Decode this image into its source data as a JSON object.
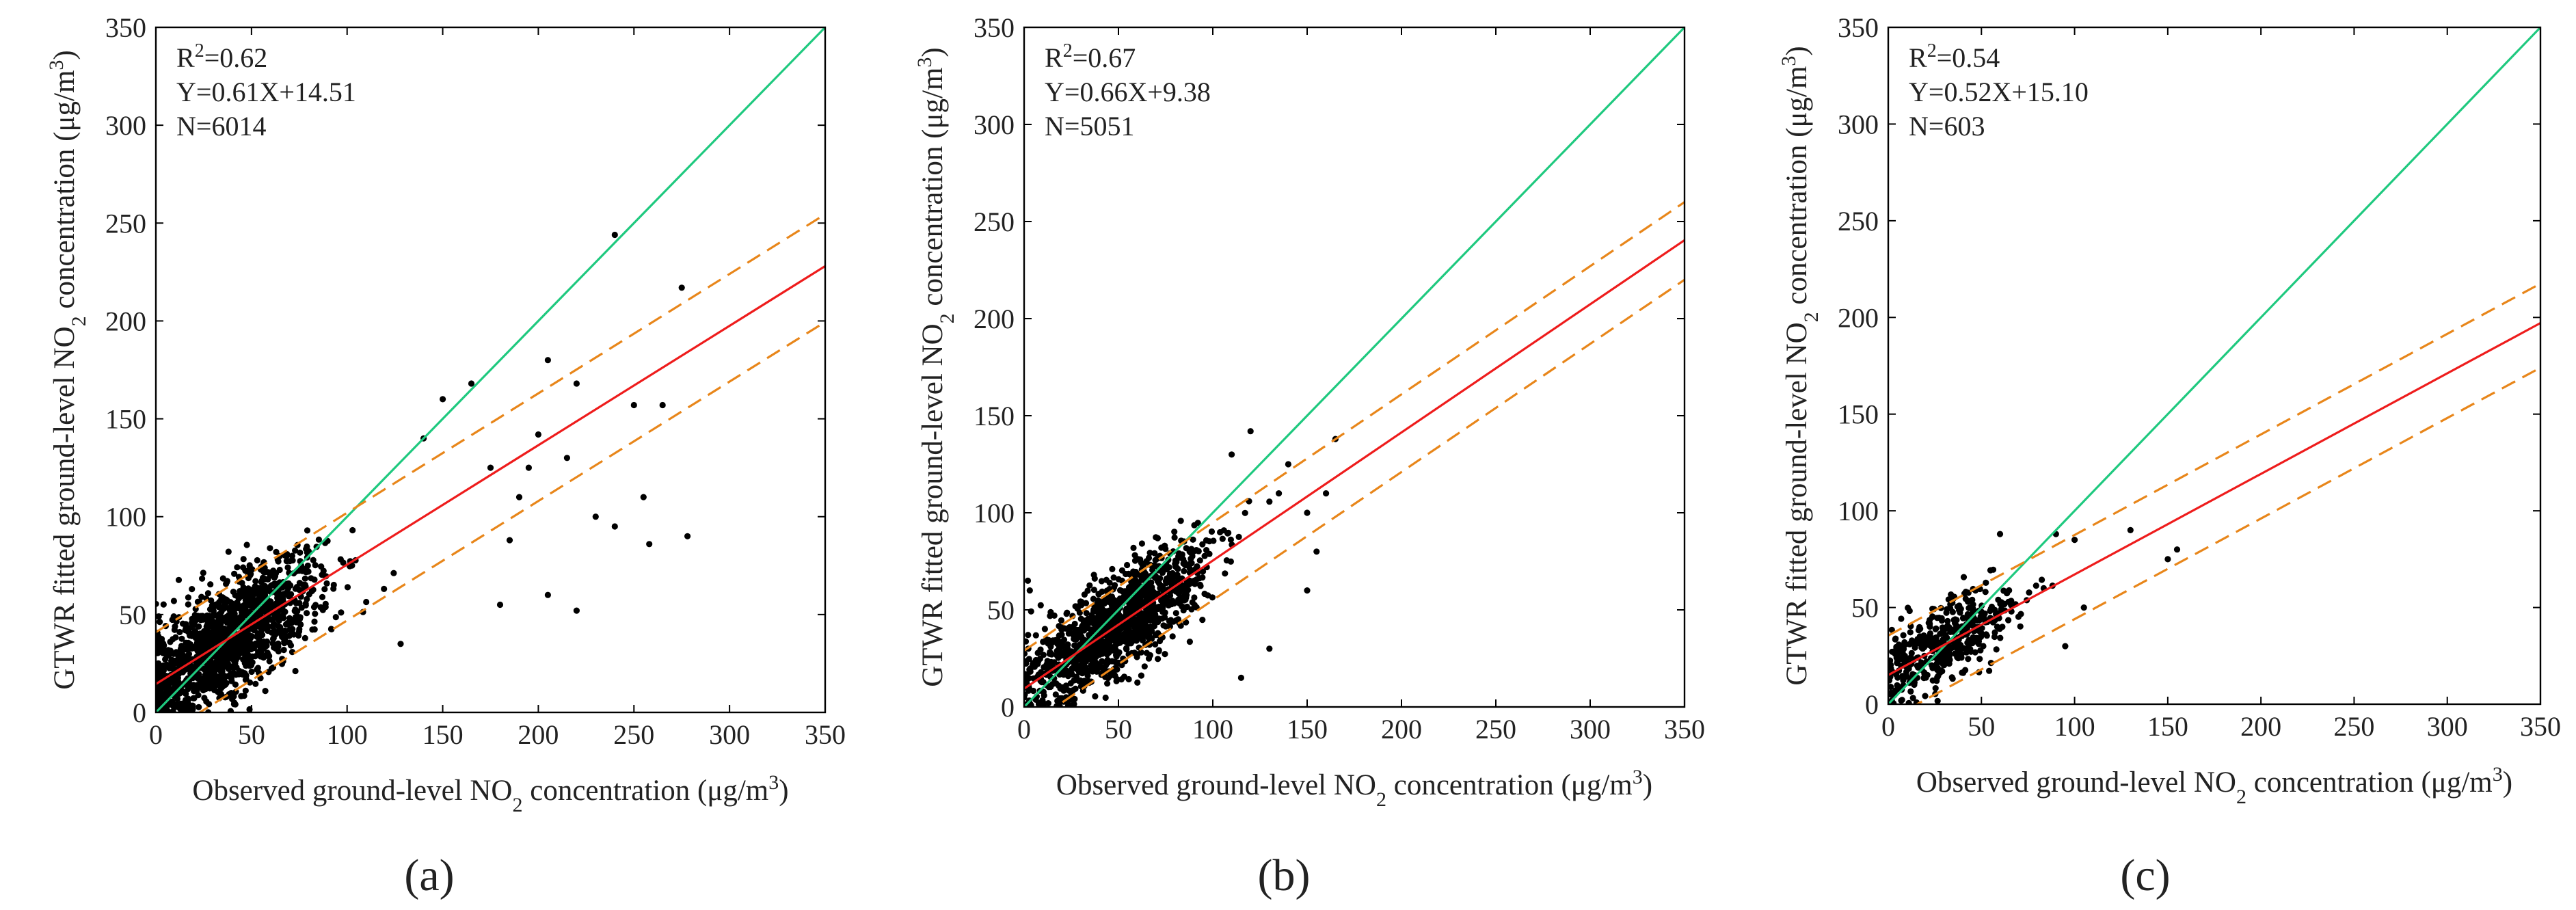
{
  "panel_labels": [
    "(a)",
    "(b)",
    "(c)"
  ],
  "chart_data": [
    {
      "type": "scatter",
      "panel": "(a)",
      "xlabel": "Observed ground-level NO2 concentration (μg/m3)",
      "ylabel": "GTWR fitted ground-level NO2 concentration (μg/m3)",
      "xlim": [
        0,
        350
      ],
      "ylim": [
        0,
        350
      ],
      "xticks": [
        0,
        50,
        100,
        150,
        200,
        250,
        300,
        350
      ],
      "yticks": [
        0,
        50,
        100,
        150,
        200,
        250,
        300,
        350
      ],
      "annotations": {
        "r2_prefix": "R",
        "r2_sup": "2",
        "r2_value": "=0.62",
        "equation": "Y=0.61X+14.51",
        "n": "N=6014"
      },
      "lines": [
        {
          "name": "1:1 line",
          "slope": 1.0,
          "intercept": 0,
          "color": "#1fc97f",
          "dash": "solid"
        },
        {
          "name": "fit",
          "slope": 0.61,
          "intercept": 14.51,
          "color": "#ee1c1c",
          "dash": "solid"
        },
        {
          "name": "upper bound",
          "slope": 0.61,
          "intercept": 41.0,
          "color": "#e8861a",
          "dash": "dashed"
        },
        {
          "name": "lower bound",
          "slope": 0.61,
          "intercept": -14.0,
          "color": "#e8861a",
          "dash": "dashed"
        }
      ],
      "cluster": {
        "count": 1400,
        "x_center": 38,
        "x_spread": 24,
        "x_max": 150,
        "slope": 0.61,
        "intercept": 14.51,
        "noise": 14
      },
      "outliers": [
        [
          240,
          244
        ],
        [
          275,
          217
        ],
        [
          265,
          157
        ],
        [
          205,
          180
        ],
        [
          200,
          142
        ],
        [
          215,
          130
        ],
        [
          220,
          168
        ],
        [
          250,
          157
        ],
        [
          255,
          110
        ],
        [
          258,
          86
        ],
        [
          278,
          90
        ],
        [
          220,
          52
        ],
        [
          230,
          100
        ],
        [
          180,
          55
        ],
        [
          205,
          60
        ],
        [
          165,
          168
        ],
        [
          175,
          125
        ],
        [
          190,
          110
        ],
        [
          140,
          140
        ],
        [
          150,
          160
        ],
        [
          128,
          35
        ],
        [
          185,
          88
        ],
        [
          240,
          95
        ],
        [
          195,
          125
        ]
      ]
    },
    {
      "type": "scatter",
      "panel": "(b)",
      "xlabel": "Observed ground-level NO2 concentration (μg/m3)",
      "ylabel": "GTWR fitted ground-level NO2 concentration (μg/m3)",
      "xlim": [
        0,
        350
      ],
      "ylim": [
        0,
        350
      ],
      "xticks": [
        0,
        50,
        100,
        150,
        200,
        250,
        300,
        350
      ],
      "yticks": [
        0,
        50,
        100,
        150,
        200,
        250,
        300,
        350
      ],
      "annotations": {
        "r2_prefix": "R",
        "r2_sup": "2",
        "r2_value": "=0.67",
        "equation": "Y=0.66X+9.38",
        "n": "N=5051"
      },
      "lines": [
        {
          "name": "1:1 line",
          "slope": 1.0,
          "intercept": 0,
          "color": "#1fc97f",
          "dash": "solid"
        },
        {
          "name": "fit",
          "slope": 0.66,
          "intercept": 9.38,
          "color": "#ee1c1c",
          "dash": "solid"
        },
        {
          "name": "upper bound",
          "slope": 0.66,
          "intercept": 29.0,
          "color": "#e8861a",
          "dash": "dashed"
        },
        {
          "name": "lower bound",
          "slope": 0.66,
          "intercept": -11.0,
          "color": "#e8861a",
          "dash": "dashed"
        }
      ],
      "cluster": {
        "count": 1200,
        "x_center": 48,
        "x_spread": 25,
        "x_max": 165,
        "slope": 0.66,
        "intercept": 9.38,
        "noise": 13
      },
      "outliers": [
        [
          120,
          142
        ],
        [
          165,
          138
        ],
        [
          150,
          100
        ],
        [
          150,
          60
        ],
        [
          160,
          110
        ],
        [
          130,
          30
        ],
        [
          115,
          15
        ],
        [
          2,
          65
        ],
        [
          3,
          60
        ],
        [
          140,
          125
        ],
        [
          155,
          80
        ],
        [
          135,
          110
        ],
        [
          110,
          130
        ]
      ]
    },
    {
      "type": "scatter",
      "panel": "(c)",
      "xlabel": "Observed ground-level NO2 concentration (μg/m3)",
      "ylabel": "GTWR fitted ground-level NO2 concentration (μg/m3)",
      "xlim": [
        0,
        350
      ],
      "ylim": [
        0,
        350
      ],
      "xticks": [
        0,
        50,
        100,
        150,
        200,
        250,
        300,
        350
      ],
      "yticks": [
        0,
        50,
        100,
        150,
        200,
        250,
        300,
        350
      ],
      "annotations": {
        "r2_prefix": "R",
        "r2_sup": "2",
        "r2_value": "=0.54",
        "equation": "Y=0.52X+15.10",
        "n": "N=603"
      },
      "lines": [
        {
          "name": "1:1 line",
          "slope": 1.0,
          "intercept": 0,
          "color": "#1fc97f",
          "dash": "solid"
        },
        {
          "name": "fit",
          "slope": 0.52,
          "intercept": 15.1,
          "color": "#ee1c1c",
          "dash": "solid"
        },
        {
          "name": "upper bound",
          "slope": 0.52,
          "intercept": 35.5,
          "color": "#e8861a",
          "dash": "dashed"
        },
        {
          "name": "lower bound",
          "slope": 0.52,
          "intercept": -8.0,
          "color": "#e8861a",
          "dash": "dashed"
        }
      ],
      "cluster": {
        "count": 450,
        "x_center": 30,
        "x_spread": 20,
        "x_max": 100,
        "slope": 0.52,
        "intercept": 15.1,
        "noise": 11
      },
      "outliers": [
        [
          155,
          80
        ],
        [
          150,
          75
        ],
        [
          130,
          90
        ],
        [
          100,
          85
        ],
        [
          105,
          50
        ],
        [
          90,
          88
        ],
        [
          60,
          88
        ],
        [
          95,
          30
        ]
      ]
    }
  ]
}
